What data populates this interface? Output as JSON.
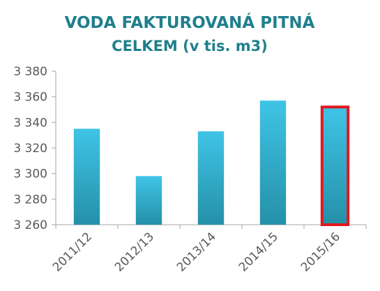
{
  "chart_data": {
    "type": "bar",
    "title_lines": [
      "VODA FAKTUROVANÁ PITNÁ",
      "CELKEM (v tis. m3)"
    ],
    "categories": [
      "2011/12",
      "2012/13",
      "2013/14",
      "2014/15",
      "2015/16"
    ],
    "values": [
      3335,
      3298,
      3333,
      3357,
      3352
    ],
    "yticks": [
      "3 260",
      "3 280",
      "3 300",
      "3 320",
      "3 340",
      "3 360",
      "3 380"
    ],
    "ylim": [
      3260,
      3380
    ],
    "highlighted_category": "2015/16",
    "grid": false,
    "colors": {
      "bar_top": "#3fc4e6",
      "bar_bottom": "#2590a8",
      "highlight_border": "#e0191f",
      "title": "#1f7f8c",
      "axis": "#a6a6a6",
      "text": "#595959"
    }
  }
}
